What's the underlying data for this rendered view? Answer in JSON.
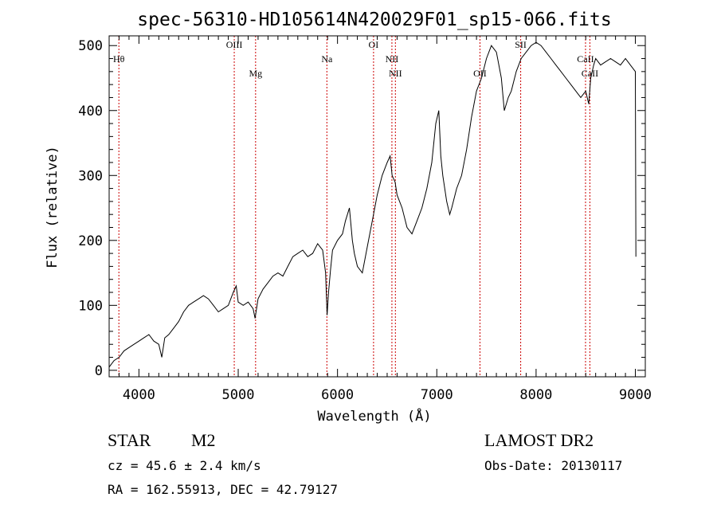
{
  "chart_data": {
    "type": "line",
    "title": "spec-56310-HD105614N420029F01_sp15-066.fits",
    "xlabel": "Wavelength (Å)",
    "ylabel": "Flux (relative)",
    "xlim": [
      3700,
      9100
    ],
    "ylim": [
      -10,
      515
    ],
    "x_ticks": [
      4000,
      5000,
      6000,
      7000,
      8000,
      9000
    ],
    "y_ticks": [
      0,
      100,
      200,
      300,
      400,
      500
    ],
    "x_tick_labels": [
      "4000",
      "5000",
      "6000",
      "7000",
      "8000",
      "9000"
    ],
    "y_tick_labels": [
      "0",
      "100",
      "200",
      "300",
      "400",
      "500"
    ],
    "grid": false,
    "line_color": "#000000",
    "series": [
      {
        "x": [
          3700,
          3750,
          3800,
          3850,
          3900,
          3950,
          4000,
          4050,
          4100,
          4150,
          4200,
          4230,
          4260,
          4300,
          4350,
          4400,
          4450,
          4500,
          4550,
          4600,
          4650,
          4700,
          4750,
          4800,
          4850,
          4900,
          4950,
          4980,
          5000,
          5050,
          5100,
          5150,
          5170,
          5200,
          5250,
          5300,
          5350,
          5400,
          5450,
          5500,
          5550,
          5600,
          5650,
          5700,
          5750,
          5800,
          5850,
          5880,
          5895,
          5910,
          5930,
          5950,
          6000,
          6050,
          6080,
          6100,
          6120,
          6150,
          6170,
          6200,
          6250,
          6300,
          6350,
          6400,
          6450,
          6500,
          6530,
          6550,
          6580,
          6600,
          6650,
          6700,
          6750,
          6800,
          6850,
          6900,
          6950,
          6990,
          7020,
          7040,
          7060,
          7100,
          7130,
          7150,
          7200,
          7250,
          7300,
          7350,
          7400,
          7450,
          7500,
          7550,
          7600,
          7650,
          7680,
          7700,
          7720,
          7750,
          7800,
          7850,
          7900,
          7950,
          8000,
          8050,
          8100,
          8150,
          8200,
          8250,
          8300,
          8350,
          8400,
          8450,
          8500,
          8530,
          8550,
          8580,
          8600,
          8650,
          8700,
          8750,
          8800,
          8850,
          8900,
          8950,
          9000,
          9005
        ],
        "y": [
          5,
          15,
          20,
          30,
          35,
          40,
          45,
          50,
          55,
          45,
          40,
          20,
          50,
          55,
          65,
          75,
          90,
          100,
          105,
          110,
          115,
          110,
          100,
          90,
          95,
          100,
          120,
          130,
          105,
          100,
          105,
          95,
          80,
          110,
          125,
          135,
          145,
          150,
          145,
          160,
          175,
          180,
          185,
          175,
          180,
          195,
          185,
          150,
          85,
          120,
          155,
          185,
          200,
          210,
          230,
          240,
          250,
          200,
          180,
          160,
          150,
          190,
          230,
          270,
          300,
          320,
          330,
          300,
          290,
          270,
          250,
          220,
          210,
          230,
          250,
          280,
          320,
          380,
          400,
          330,
          300,
          260,
          240,
          250,
          280,
          300,
          340,
          390,
          430,
          450,
          480,
          500,
          490,
          450,
          400,
          410,
          420,
          430,
          460,
          480,
          490,
          500,
          505,
          500,
          490,
          480,
          470,
          460,
          450,
          440,
          430,
          420,
          430,
          410,
          450,
          470,
          480,
          470,
          475,
          480,
          475,
          470,
          480,
          470,
          460,
          175
        ]
      }
    ],
    "line_markers": [
      {
        "label": "Hθ",
        "x": 3798,
        "label_row": 1
      },
      {
        "label": "OIII",
        "x": 4960,
        "label_row": 0
      },
      {
        "label": "Mg",
        "x": 5175,
        "label_row": 2
      },
      {
        "label": "Na",
        "x": 5893,
        "label_row": 1
      },
      {
        "label": "OI",
        "x": 6363,
        "label_row": 0
      },
      {
        "label": "NII",
        "x": 6548,
        "label_row": 1
      },
      {
        "label": "NII",
        "x": 6583,
        "label_row": 2
      },
      {
        "label": "OII",
        "x": 7435,
        "label_row": 2
      },
      {
        "label": "SII",
        "x": 7845,
        "label_row": 0
      },
      {
        "label": "CaII",
        "x": 8498,
        "label_row": 1
      },
      {
        "label": "CaII",
        "x": 8542,
        "label_row": 2
      }
    ],
    "marker_color": "#cc0000"
  },
  "info": {
    "object_type": "STAR",
    "subclass": "M2",
    "survey": "LAMOST DR2",
    "cz_line": "cz = 45.6 ± 2.4 km/s",
    "obs_date_line": "Obs-Date: 20130117",
    "radec_line": "RA = 162.55913, DEC =  42.79127"
  }
}
